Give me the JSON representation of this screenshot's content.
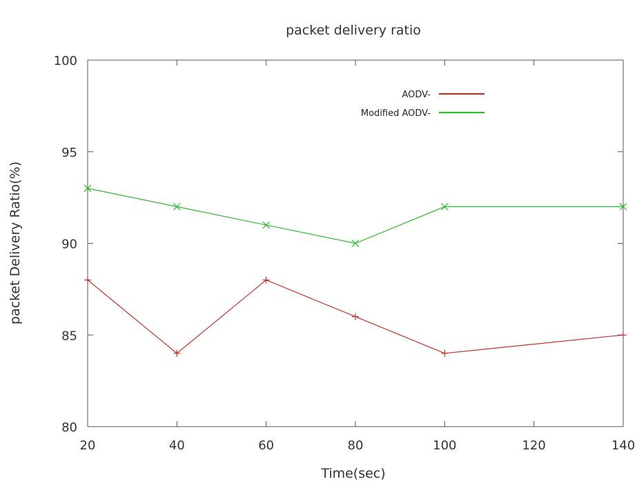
{
  "chart_data": {
    "type": "line",
    "title": "packet delivery ratio",
    "xlabel": "Time(sec)",
    "ylabel": "packet Delivery Ratio(%)",
    "xlim": [
      20,
      140
    ],
    "ylim": [
      80,
      100
    ],
    "xticks": [
      20,
      40,
      60,
      80,
      100,
      120,
      140
    ],
    "yticks": [
      80,
      85,
      90,
      95,
      100
    ],
    "grid": false,
    "legend_position": "top-right",
    "x": [
      20,
      40,
      60,
      80,
      100,
      140
    ],
    "series": [
      {
        "name": "AODV-",
        "color": "#c0302a",
        "marker": "plus",
        "values": [
          88,
          84,
          88,
          86,
          84,
          85
        ]
      },
      {
        "name": "Modified AODV-",
        "color": "#2eb82e",
        "marker": "cross",
        "values": [
          93,
          92,
          91,
          90,
          92,
          92
        ]
      }
    ]
  }
}
